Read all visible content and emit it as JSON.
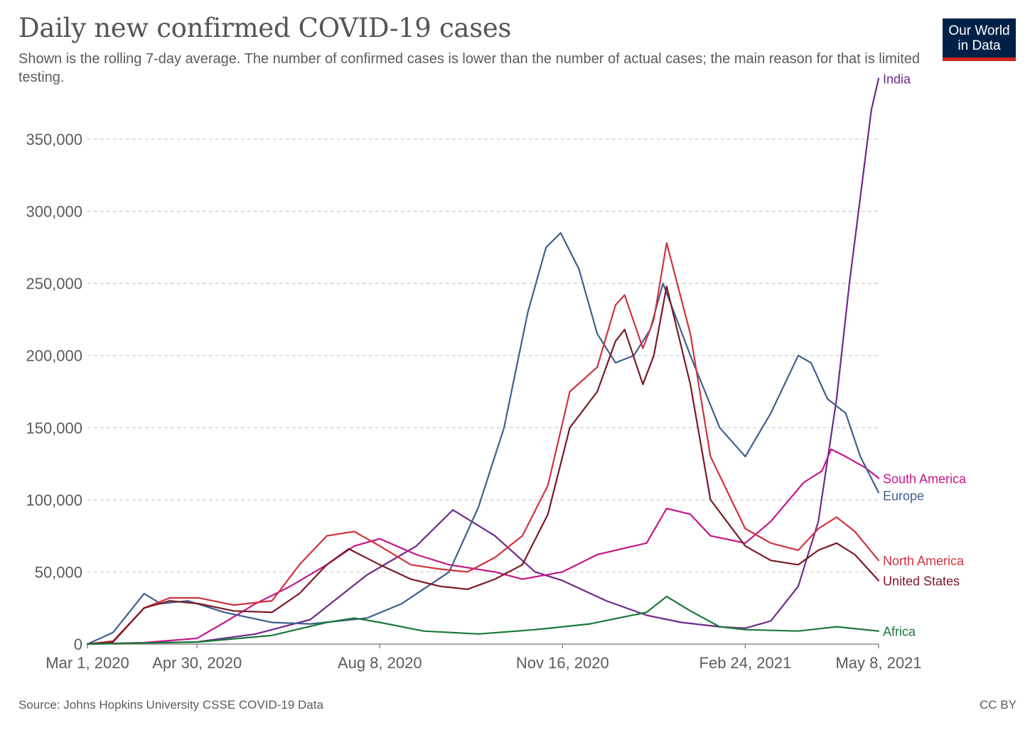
{
  "header": {
    "title": "Daily new confirmed COVID-19 cases",
    "subtitle": "Shown is the rolling 7-day average. The number of confirmed cases is lower than the number of actual cases; the main reason for that is limited testing."
  },
  "logo": {
    "line1": "Our World",
    "line2": "in Data"
  },
  "footer": {
    "source": "Source: Johns Hopkins University CSSE COVID-19 Data",
    "license": "CC BY"
  },
  "colors": {
    "India": "#6d2a8a",
    "South America": "#c4178b",
    "Europe": "#3f5f8f",
    "North America": "#d1323f",
    "United States": "#7a1a24",
    "Africa": "#1a7a3a",
    "grid": "#cccccc",
    "axis": "#5b5b5b"
  },
  "chart_data": {
    "type": "line",
    "title": "Daily new confirmed COVID-19 cases",
    "xlabel": "",
    "ylabel": "",
    "x_start": "2020-03-01",
    "x_end": "2021-05-08",
    "ylim": [
      0,
      380000
    ],
    "yticks": [
      0,
      50000,
      100000,
      150000,
      200000,
      250000,
      300000,
      350000
    ],
    "ytick_labels": [
      "0",
      "50,000",
      "100,000",
      "150,000",
      "200,000",
      "250,000",
      "300,000",
      "350,000"
    ],
    "xticks": [
      "2020-03-01",
      "2020-04-30",
      "2020-08-08",
      "2020-11-16",
      "2021-02-24",
      "2021-05-08"
    ],
    "xtick_labels": [
      "Mar 1, 2020",
      "Apr 30, 2020",
      "Aug 8, 2020",
      "Nov 16, 2020",
      "Feb 24, 2021",
      "May 8, 2021"
    ],
    "grid": true,
    "legend": "end-of-line labels",
    "series": [
      {
        "name": "India",
        "x": [
          "2020-03-01",
          "2020-04-30",
          "2020-06-01",
          "2020-07-01",
          "2020-08-01",
          "2020-08-28",
          "2020-09-17",
          "2020-10-10",
          "2020-11-01",
          "2020-11-16",
          "2020-12-10",
          "2021-01-01",
          "2021-01-20",
          "2021-02-10",
          "2021-02-24",
          "2021-03-10",
          "2021-03-25",
          "2021-04-05",
          "2021-04-15",
          "2021-04-22",
          "2021-04-29",
          "2021-05-04",
          "2021-05-08"
        ],
        "values": [
          0,
          1500,
          7000,
          17000,
          48000,
          68000,
          93000,
          75000,
          50000,
          44000,
          30000,
          20000,
          15000,
          12000,
          11000,
          16000,
          40000,
          85000,
          170000,
          250000,
          320000,
          370000,
          392000
        ]
      },
      {
        "name": "South America",
        "x": [
          "2020-03-01",
          "2020-04-01",
          "2020-04-30",
          "2020-05-15",
          "2020-06-01",
          "2020-06-20",
          "2020-07-10",
          "2020-07-25",
          "2020-08-08",
          "2020-08-28",
          "2020-09-15",
          "2020-10-10",
          "2020-10-25",
          "2020-11-16",
          "2020-12-05",
          "2020-12-25",
          "2021-01-01",
          "2021-01-12",
          "2021-01-25",
          "2021-02-05",
          "2021-02-24",
          "2021-03-10",
          "2021-03-28",
          "2021-04-07",
          "2021-04-12",
          "2021-04-20",
          "2021-05-01",
          "2021-05-08"
        ],
        "values": [
          0,
          1000,
          4000,
          15000,
          28000,
          40000,
          55000,
          68000,
          73000,
          62000,
          55000,
          50000,
          45000,
          50000,
          62000,
          68000,
          70000,
          94000,
          90000,
          75000,
          70000,
          85000,
          112000,
          120000,
          135000,
          130000,
          122000,
          115000
        ]
      },
      {
        "name": "Europe",
        "x": [
          "2020-03-01",
          "2020-03-15",
          "2020-04-01",
          "2020-04-10",
          "2020-04-25",
          "2020-05-15",
          "2020-06-10",
          "2020-07-01",
          "2020-08-01",
          "2020-08-20",
          "2020-09-15",
          "2020-10-01",
          "2020-10-15",
          "2020-10-28",
          "2020-11-07",
          "2020-11-15",
          "2020-11-25",
          "2020-12-05",
          "2020-12-15",
          "2020-12-25",
          "2021-01-03",
          "2021-01-10",
          "2021-01-25",
          "2021-02-10",
          "2021-02-24",
          "2021-03-10",
          "2021-03-25",
          "2021-04-01",
          "2021-04-10",
          "2021-04-20",
          "2021-04-28",
          "2021-05-08"
        ],
        "values": [
          0,
          8000,
          35000,
          28000,
          30000,
          22000,
          15000,
          14000,
          18000,
          28000,
          50000,
          95000,
          150000,
          230000,
          275000,
          285000,
          260000,
          215000,
          195000,
          200000,
          218000,
          250000,
          200000,
          150000,
          130000,
          160000,
          200000,
          195000,
          170000,
          160000,
          130000,
          105000
        ]
      },
      {
        "name": "North America",
        "x": [
          "2020-03-01",
          "2020-03-15",
          "2020-04-01",
          "2020-04-15",
          "2020-05-01",
          "2020-05-20",
          "2020-06-10",
          "2020-06-25",
          "2020-07-10",
          "2020-07-25",
          "2020-08-08",
          "2020-08-25",
          "2020-09-10",
          "2020-09-25",
          "2020-10-10",
          "2020-10-25",
          "2020-11-08",
          "2020-11-20",
          "2020-12-05",
          "2020-12-15",
          "2020-12-20",
          "2020-12-30",
          "2021-01-05",
          "2021-01-12",
          "2021-01-25",
          "2021-02-05",
          "2021-02-24",
          "2021-03-10",
          "2021-03-25",
          "2021-04-05",
          "2021-04-15",
          "2021-04-25",
          "2021-05-08"
        ],
        "values": [
          0,
          2000,
          25000,
          32000,
          32000,
          27000,
          30000,
          55000,
          75000,
          78000,
          68000,
          55000,
          52000,
          50000,
          60000,
          75000,
          110000,
          175000,
          192000,
          235000,
          242000,
          205000,
          225000,
          278000,
          215000,
          130000,
          80000,
          70000,
          65000,
          80000,
          88000,
          78000,
          58000
        ]
      },
      {
        "name": "United States",
        "x": [
          "2020-03-01",
          "2020-03-15",
          "2020-04-01",
          "2020-04-15",
          "2020-05-01",
          "2020-05-20",
          "2020-06-10",
          "2020-06-25",
          "2020-07-10",
          "2020-07-22",
          "2020-08-08",
          "2020-08-25",
          "2020-09-10",
          "2020-09-25",
          "2020-10-10",
          "2020-10-25",
          "2020-11-08",
          "2020-11-20",
          "2020-12-05",
          "2020-12-15",
          "2020-12-20",
          "2020-12-30",
          "2021-01-05",
          "2021-01-12",
          "2021-01-25",
          "2021-02-05",
          "2021-02-24",
          "2021-03-10",
          "2021-03-25",
          "2021-04-05",
          "2021-04-15",
          "2021-04-25",
          "2021-05-08"
        ],
        "values": [
          0,
          1500,
          25000,
          30000,
          28000,
          23000,
          22000,
          35000,
          55000,
          66000,
          55000,
          45000,
          40000,
          38000,
          45000,
          55000,
          90000,
          150000,
          175000,
          210000,
          218000,
          180000,
          200000,
          248000,
          180000,
          100000,
          68000,
          58000,
          55000,
          65000,
          70000,
          62000,
          44000
        ]
      },
      {
        "name": "Africa",
        "x": [
          "2020-03-01",
          "2020-05-01",
          "2020-06-10",
          "2020-07-10",
          "2020-07-25",
          "2020-08-08",
          "2020-09-01",
          "2020-10-01",
          "2020-11-01",
          "2020-12-01",
          "2021-01-01",
          "2021-01-12",
          "2021-01-25",
          "2021-02-10",
          "2021-02-24",
          "2021-03-25",
          "2021-04-15",
          "2021-05-08"
        ],
        "values": [
          0,
          1500,
          6000,
          15000,
          18000,
          15000,
          9000,
          7000,
          10000,
          14000,
          22000,
          33000,
          23000,
          12000,
          10000,
          9000,
          12000,
          9000
        ]
      }
    ]
  }
}
